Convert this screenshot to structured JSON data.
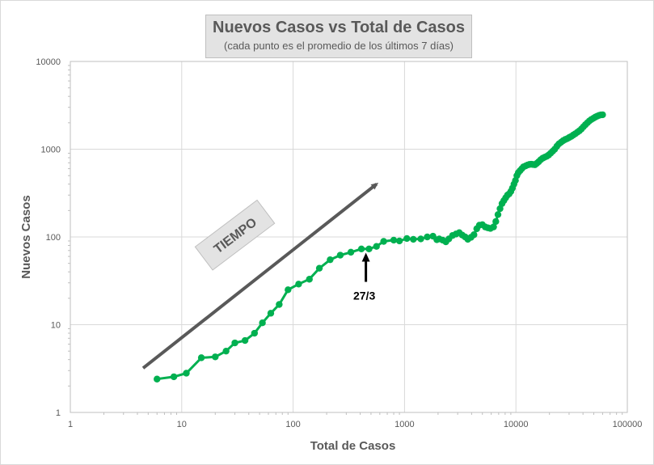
{
  "chart_data": {
    "type": "line",
    "title": "Nuevos Casos vs Total de Casos",
    "subtitle": "(cada punto  es el promedio  de los últimos  7 días)",
    "xlabel": "Total de Casos",
    "ylabel": "Nuevos Casos",
    "xscale": "log",
    "yscale": "log",
    "xlim": [
      1,
      100000
    ],
    "ylim": [
      1,
      10000
    ],
    "x_ticks": [
      "1",
      "10",
      "100",
      "1000",
      "10000",
      "100000"
    ],
    "y_ticks": [
      "1",
      "10",
      "100",
      "1000",
      "10000"
    ],
    "grid": true,
    "series_color": "#00b050",
    "series": [
      {
        "points": [
          [
            6,
            2.4
          ],
          [
            8.5,
            2.55
          ],
          [
            11,
            2.8
          ],
          [
            15,
            4.2
          ],
          [
            20,
            4.3
          ],
          [
            25,
            5
          ],
          [
            30,
            6.2
          ],
          [
            37,
            6.6
          ],
          [
            45,
            8
          ],
          [
            53,
            10.5
          ],
          [
            63,
            13.5
          ],
          [
            75,
            17
          ],
          [
            90,
            25
          ],
          [
            112,
            29
          ],
          [
            140,
            33
          ],
          [
            172,
            44
          ],
          [
            215,
            55
          ],
          [
            265,
            62
          ],
          [
            330,
            67
          ],
          [
            410,
            73
          ],
          [
            480,
            73
          ],
          [
            560,
            78
          ],
          [
            650,
            89
          ],
          [
            800,
            92
          ],
          [
            900,
            90
          ],
          [
            1050,
            96
          ],
          [
            1200,
            94
          ],
          [
            1400,
            95
          ],
          [
            1600,
            100
          ],
          [
            1800,
            102
          ],
          [
            1950,
            93
          ],
          [
            2050,
            95
          ],
          [
            2200,
            92
          ],
          [
            2350,
            88
          ],
          [
            2500,
            95
          ],
          [
            2700,
            104
          ],
          [
            2900,
            108
          ],
          [
            3100,
            112
          ],
          [
            3300,
            105
          ],
          [
            3500,
            100
          ],
          [
            3700,
            94
          ],
          [
            3950,
            99
          ],
          [
            4200,
            106
          ],
          [
            4450,
            124
          ],
          [
            4700,
            136
          ],
          [
            5000,
            138
          ],
          [
            5300,
            130
          ],
          [
            5600,
            127
          ],
          [
            5900,
            125
          ],
          [
            6300,
            130
          ],
          [
            6600,
            150
          ],
          [
            6900,
            180
          ],
          [
            7200,
            210
          ],
          [
            7500,
            240
          ],
          [
            7800,
            260
          ],
          [
            8100,
            280
          ],
          [
            8400,
            300
          ],
          [
            8700,
            310
          ],
          [
            9000,
            330
          ],
          [
            9300,
            360
          ],
          [
            9600,
            400
          ],
          [
            9900,
            440
          ],
          [
            10200,
            500
          ],
          [
            10500,
            540
          ],
          [
            10900,
            570
          ],
          [
            11300,
            600
          ],
          [
            11700,
            630
          ],
          [
            12200,
            645
          ],
          [
            12700,
            660
          ],
          [
            13200,
            670
          ],
          [
            13700,
            675
          ],
          [
            14200,
            670
          ],
          [
            14800,
            665
          ],
          [
            15400,
            690
          ],
          [
            16000,
            720
          ],
          [
            16700,
            760
          ],
          [
            17400,
            790
          ],
          [
            18100,
            810
          ],
          [
            18900,
            830
          ],
          [
            19700,
            860
          ],
          [
            20500,
            900
          ],
          [
            21400,
            950
          ],
          [
            22300,
            1000
          ],
          [
            23300,
            1080
          ],
          [
            24300,
            1150
          ],
          [
            25400,
            1200
          ],
          [
            26500,
            1250
          ],
          [
            27700,
            1290
          ],
          [
            28900,
            1320
          ],
          [
            30100,
            1360
          ],
          [
            31400,
            1400
          ],
          [
            32700,
            1450
          ],
          [
            34100,
            1500
          ],
          [
            35600,
            1560
          ],
          [
            37100,
            1620
          ],
          [
            38700,
            1700
          ],
          [
            40300,
            1800
          ],
          [
            42000,
            1900
          ],
          [
            43800,
            2000
          ],
          [
            45600,
            2100
          ],
          [
            47500,
            2180
          ],
          [
            49500,
            2250
          ],
          [
            51500,
            2320
          ],
          [
            53600,
            2380
          ],
          [
            55700,
            2430
          ],
          [
            57900,
            2460
          ],
          [
            60000,
            2470
          ]
        ]
      }
    ],
    "annotations": [
      {
        "type": "arrow",
        "label": "27/3",
        "x": 450,
        "y": 75
      },
      {
        "type": "trend-arrow",
        "label": "TIEMPO"
      }
    ]
  }
}
